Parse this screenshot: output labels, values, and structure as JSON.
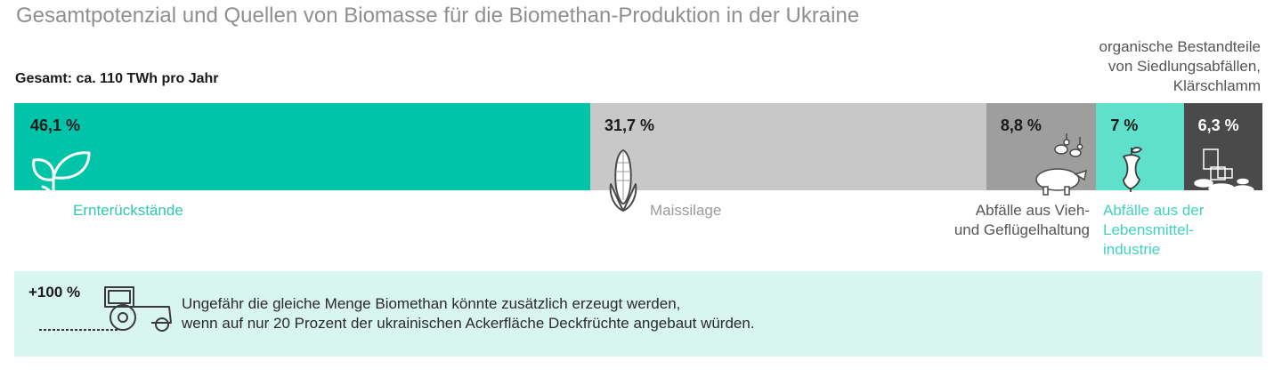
{
  "title": "Gesamtpotenzial und Quellen von  Biomasse für die Biomethan-Produktion in der Ukraine",
  "total_label": "Gesamt: ca. 110 TWh pro Jahr",
  "top_label_lines": [
    "organische Bestandteile",
    "von Siedlungsabfällen,",
    "Klärschlamm"
  ],
  "chart_data": {
    "type": "bar",
    "orientation": "horizontal-stacked",
    "categories": [
      "Ernterückstände",
      "Maissilage",
      "Abfälle aus Vieh- und Geflügelhaltung",
      "Abfälle aus der Lebensmittelindustrie",
      "organische Bestandteile von Siedlungsabfällen, Klärschlamm"
    ],
    "values": [
      46.1,
      31.7,
      8.8,
      7,
      6.3
    ],
    "value_labels": [
      "46,1 %",
      "31,7 %",
      "8,8 %",
      "7 %",
      "6,3 %"
    ],
    "colors": [
      "#00c4a8",
      "#c8c8c8",
      "#9e9e9e",
      "#5ee0cc",
      "#4a4a4a"
    ],
    "title": "Gesamtpotenzial und Quellen von  Biomasse für die Biomethan-Produktion in der Ukraine",
    "total": "Gesamt: ca. 110 TWh pro Jahr"
  },
  "labels": {
    "crop": [
      "Ernterückstände"
    ],
    "maize": [
      "Maissilage"
    ],
    "livestock": [
      "Abfälle aus Vieh-",
      "und Geflügelhaltung"
    ],
    "food": [
      "Abfälle aus der",
      "Lebensmittel-",
      "industrie"
    ]
  },
  "note": {
    "plus": "+100 %",
    "lines": [
      "Ungefähr die gleiche Menge Biomethan könnte zusätzlich erzeugt werden,",
      "wenn auf nur 20 Prozent der ukrainischen Ackerfläche Deckfrüchte angebaut würden."
    ]
  },
  "icons": [
    "leaf-sprout-icon",
    "corn-cob-icon",
    "pig-and-goose-icon",
    "apple-core-icon",
    "waste-pile-icon",
    "tractor-icon"
  ]
}
